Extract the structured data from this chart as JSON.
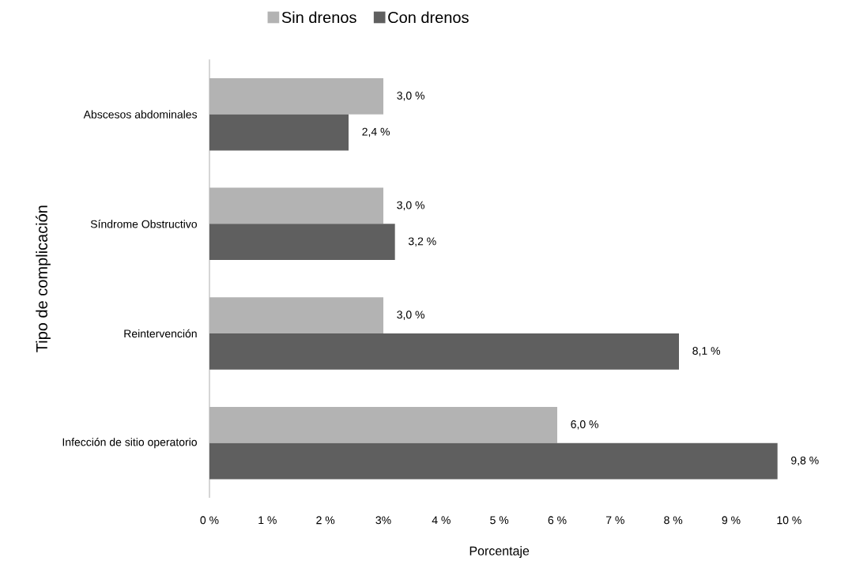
{
  "chart_data": {
    "type": "bar",
    "orientation": "horizontal",
    "categories": [
      "Abscesos abdominales",
      "Síndrome Obstructivo",
      "Reintervención",
      "Infección de sitio operatorio"
    ],
    "series": [
      {
        "name": "Sin drenos",
        "color": "#b3b3b3",
        "values": [
          3.0,
          3.0,
          3.0,
          6.0
        ],
        "value_labels": [
          "3,0 %",
          "3,0 %",
          "3,0 %",
          "6,0 %"
        ]
      },
      {
        "name": "Con drenos",
        "color": "#5f5f5f",
        "values": [
          2.4,
          3.2,
          8.1,
          9.8
        ],
        "value_labels": [
          "2,4 %",
          "3,2 %",
          "8,1 %",
          "9,8 %"
        ]
      }
    ],
    "xlim": [
      0,
      10
    ],
    "xticks": [
      {
        "value": 0,
        "label": "0 %"
      },
      {
        "value": 1,
        "label": "1 %"
      },
      {
        "value": 2,
        "label": "2 %"
      },
      {
        "value": 3,
        "label": "3%"
      },
      {
        "value": 4,
        "label": "4 %"
      },
      {
        "value": 5,
        "label": "5 %"
      },
      {
        "value": 6,
        "label": "6 %"
      },
      {
        "value": 7,
        "label": "7 %"
      },
      {
        "value": 8,
        "label": "8 %"
      },
      {
        "value": 9,
        "label": "9 %"
      },
      {
        "value": 10,
        "label": "10 %"
      }
    ],
    "xlabel": "Porcentaje",
    "ylabel": "Tipo de complicación",
    "legend": "top",
    "grid": false
  }
}
